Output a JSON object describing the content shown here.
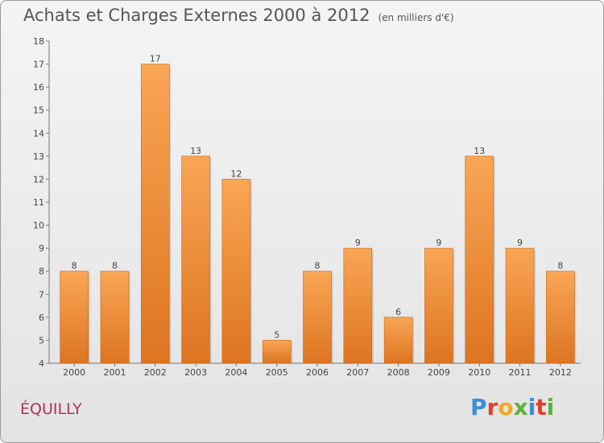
{
  "chart_data": {
    "type": "bar",
    "title": "Achats et Charges Externes 2000 à 2012",
    "subtitle": "(en milliers d'€)",
    "xlabel": "",
    "ylabel": "",
    "categories": [
      "2000",
      "2001",
      "2002",
      "2003",
      "2004",
      "2005",
      "2006",
      "2007",
      "2008",
      "2009",
      "2010",
      "2011",
      "2012"
    ],
    "values": [
      8,
      8,
      17,
      13,
      12,
      5,
      8,
      9,
      6,
      9,
      13,
      9,
      8
    ],
    "ylim": [
      4,
      18
    ],
    "yticks": [
      4,
      5,
      6,
      7,
      8,
      9,
      10,
      11,
      12,
      13,
      14,
      15,
      16,
      17,
      18
    ],
    "grid": false,
    "data_labels": true,
    "bar_color_top": "#f9a655",
    "bar_color_bottom": "#dd7420"
  },
  "footer": {
    "place": "ÉQUILLY",
    "brand_letters": [
      {
        "ch": "P",
        "color": "#3a8ed8"
      },
      {
        "ch": "r",
        "color": "#e0402c"
      },
      {
        "ch": "o",
        "color": "#f2a81d"
      },
      {
        "ch": "x",
        "color": "#5ab23a"
      },
      {
        "ch": "i",
        "color": "#3a8ed8"
      },
      {
        "ch": "t",
        "color": "#e0402c"
      },
      {
        "ch": "i",
        "color": "#5ab23a"
      }
    ]
  }
}
